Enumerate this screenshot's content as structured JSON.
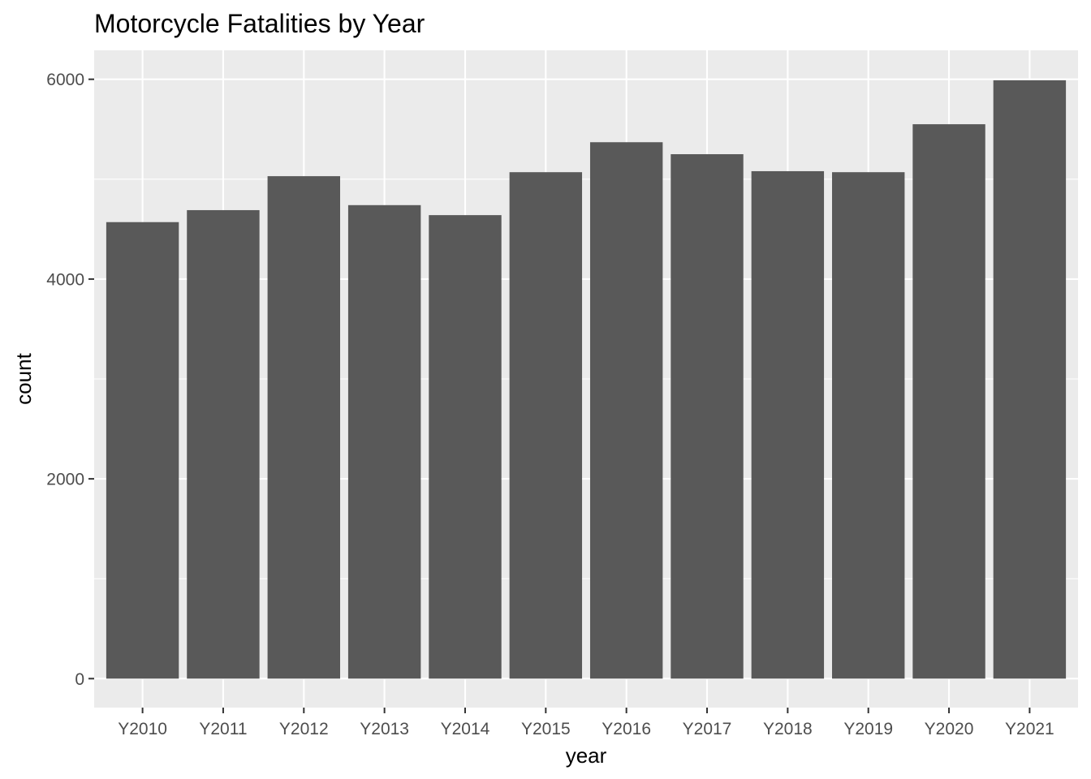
{
  "chart_data": {
    "type": "bar",
    "title": "Motorcycle Fatalities by Year",
    "xlabel": "year",
    "ylabel": "count",
    "categories": [
      "Y2010",
      "Y2011",
      "Y2012",
      "Y2013",
      "Y2014",
      "Y2015",
      "Y2016",
      "Y2017",
      "Y2018",
      "Y2019",
      "Y2020",
      "Y2021"
    ],
    "values": [
      4570,
      4690,
      5030,
      4740,
      4640,
      5070,
      5370,
      5250,
      5080,
      5070,
      5550,
      5990
    ],
    "ylim": [
      -290,
      6290
    ],
    "yticks": [
      0,
      2000,
      4000,
      6000
    ],
    "ytick_labels": [
      "0",
      "2000",
      "4000",
      "6000"
    ],
    "grid": true,
    "legend": "none",
    "colors": {
      "bar": "#595959",
      "panel_background": "#ebebeb",
      "grid": "#ffffff",
      "tick_text": "#4d4d4d",
      "title_text": "#000000"
    }
  }
}
